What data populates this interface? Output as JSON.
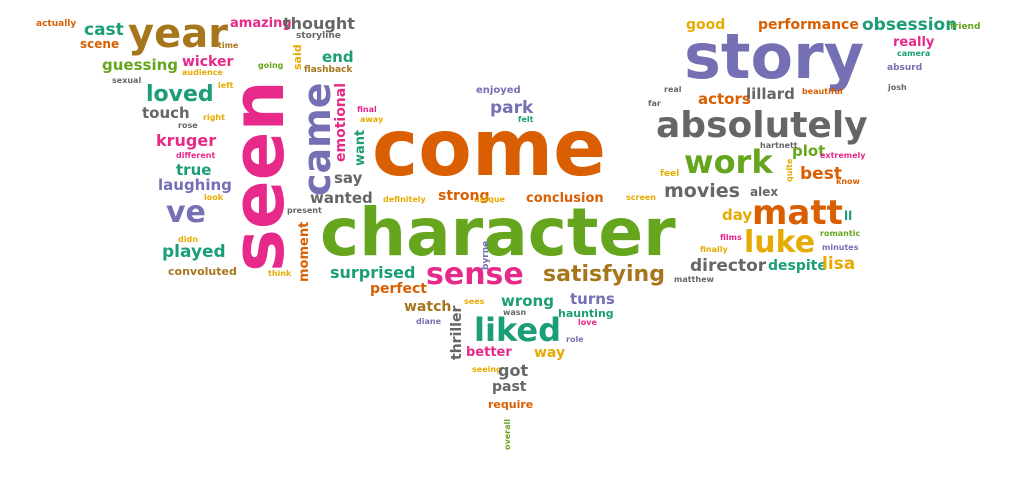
{
  "colors": {
    "orange": "#d95f02",
    "green": "#66a61e",
    "purple": "#7570b3",
    "pink": "#e7298a",
    "teal": "#1b9e77",
    "gold": "#e6ab02",
    "brown": "#a6761d",
    "gray": "#666666"
  },
  "words": [
    {
      "text": "actually",
      "color": "orange"
    },
    {
      "text": "cast",
      "color": "teal"
    },
    {
      "text": "scene",
      "color": "orange"
    },
    {
      "text": "year",
      "color": "brown"
    },
    {
      "text": "amazing",
      "color": "pink"
    },
    {
      "text": "time",
      "color": "brown"
    },
    {
      "text": "thought",
      "color": "gray"
    },
    {
      "text": "storyline",
      "color": "gray"
    },
    {
      "text": "said",
      "color": "gold"
    },
    {
      "text": "end",
      "color": "teal"
    },
    {
      "text": "flashback",
      "color": "brown"
    },
    {
      "text": "guessing",
      "color": "green"
    },
    {
      "text": "wicker",
      "color": "pink"
    },
    {
      "text": "audience",
      "color": "gold"
    },
    {
      "text": "going",
      "color": "green"
    },
    {
      "text": "sexual",
      "color": "gray"
    },
    {
      "text": "left",
      "color": "gold"
    },
    {
      "text": "loved",
      "color": "teal"
    },
    {
      "text": "seen",
      "color": "pink"
    },
    {
      "text": "came",
      "color": "purple"
    },
    {
      "text": "emotional",
      "color": "pink"
    },
    {
      "text": "touch",
      "color": "gray"
    },
    {
      "text": "right",
      "color": "gold"
    },
    {
      "text": "rose",
      "color": "gray"
    },
    {
      "text": "kruger",
      "color": "pink"
    },
    {
      "text": "different",
      "color": "pink"
    },
    {
      "text": "true",
      "color": "teal"
    },
    {
      "text": "laughing",
      "color": "purple"
    },
    {
      "text": "look",
      "color": "gold"
    },
    {
      "text": "ve",
      "color": "purple"
    },
    {
      "text": "present",
      "color": "gray"
    },
    {
      "text": "didn",
      "color": "gold"
    },
    {
      "text": "played",
      "color": "teal"
    },
    {
      "text": "convoluted",
      "color": "brown"
    },
    {
      "text": "think",
      "color": "gold"
    },
    {
      "text": "moment",
      "color": "orange"
    },
    {
      "text": "final",
      "color": "pink"
    },
    {
      "text": "away",
      "color": "gold"
    },
    {
      "text": "want",
      "color": "teal"
    },
    {
      "text": "say",
      "color": "gray"
    },
    {
      "text": "wanted",
      "color": "gray"
    },
    {
      "text": "enjoyed",
      "color": "purple"
    },
    {
      "text": "park",
      "color": "purple"
    },
    {
      "text": "felt",
      "color": "teal"
    },
    {
      "text": "come",
      "color": "orange"
    },
    {
      "text": "character",
      "color": "green"
    },
    {
      "text": "definitely",
      "color": "gold"
    },
    {
      "text": "strong",
      "color": "orange"
    },
    {
      "text": "unique",
      "color": "gold"
    },
    {
      "text": "conclusion",
      "color": "orange"
    },
    {
      "text": "screen",
      "color": "gold"
    },
    {
      "text": "feel",
      "color": "gold"
    },
    {
      "text": "surprised",
      "color": "teal"
    },
    {
      "text": "perfect",
      "color": "orange"
    },
    {
      "text": "sense",
      "color": "pink"
    },
    {
      "text": "byrne",
      "color": "purple"
    },
    {
      "text": "satisfying",
      "color": "brown"
    },
    {
      "text": "watch",
      "color": "brown"
    },
    {
      "text": "sees",
      "color": "gold"
    },
    {
      "text": "wrong",
      "color": "teal"
    },
    {
      "text": "wasn",
      "color": "gray"
    },
    {
      "text": "diane",
      "color": "purple"
    },
    {
      "text": "liked",
      "color": "teal"
    },
    {
      "text": "turns",
      "color": "purple"
    },
    {
      "text": "haunting",
      "color": "teal"
    },
    {
      "text": "love",
      "color": "pink"
    },
    {
      "text": "thriller",
      "color": "gray"
    },
    {
      "text": "better",
      "color": "pink"
    },
    {
      "text": "way",
      "color": "gold"
    },
    {
      "text": "role",
      "color": "purple"
    },
    {
      "text": "seeing",
      "color": "gold"
    },
    {
      "text": "got",
      "color": "gray"
    },
    {
      "text": "past",
      "color": "gray"
    },
    {
      "text": "require",
      "color": "orange"
    },
    {
      "text": "overall",
      "color": "green"
    },
    {
      "text": "good",
      "color": "gold"
    },
    {
      "text": "performance",
      "color": "orange"
    },
    {
      "text": "obsession",
      "color": "teal"
    },
    {
      "text": "friend",
      "color": "green"
    },
    {
      "text": "story",
      "color": "purple"
    },
    {
      "text": "really",
      "color": "pink"
    },
    {
      "text": "camera",
      "color": "teal"
    },
    {
      "text": "absurd",
      "color": "purple"
    },
    {
      "text": "beautiful",
      "color": "orange"
    },
    {
      "text": "josh",
      "color": "gray"
    },
    {
      "text": "real",
      "color": "gray"
    },
    {
      "text": "far",
      "color": "gray"
    },
    {
      "text": "actors",
      "color": "orange"
    },
    {
      "text": "lillard",
      "color": "gray"
    },
    {
      "text": "absolutely",
      "color": "gray"
    },
    {
      "text": "hartnett",
      "color": "gray"
    },
    {
      "text": "plot",
      "color": "green"
    },
    {
      "text": "extremely",
      "color": "pink"
    },
    {
      "text": "work",
      "color": "green"
    },
    {
      "text": "quite",
      "color": "gold"
    },
    {
      "text": "best",
      "color": "orange"
    },
    {
      "text": "know",
      "color": "orange"
    },
    {
      "text": "movies",
      "color": "gray"
    },
    {
      "text": "alex",
      "color": "gray"
    },
    {
      "text": "matt",
      "color": "orange"
    },
    {
      "text": "day",
      "color": "gold"
    },
    {
      "text": "ll",
      "color": "teal"
    },
    {
      "text": "films",
      "color": "pink"
    },
    {
      "text": "luke",
      "color": "gold"
    },
    {
      "text": "romantic",
      "color": "green"
    },
    {
      "text": "minutes",
      "color": "purple"
    },
    {
      "text": "finally",
      "color": "gold"
    },
    {
      "text": "director",
      "color": "gray"
    },
    {
      "text": "despite",
      "color": "teal"
    },
    {
      "text": "lisa",
      "color": "gold"
    },
    {
      "text": "matthew",
      "color": "gray"
    }
  ]
}
